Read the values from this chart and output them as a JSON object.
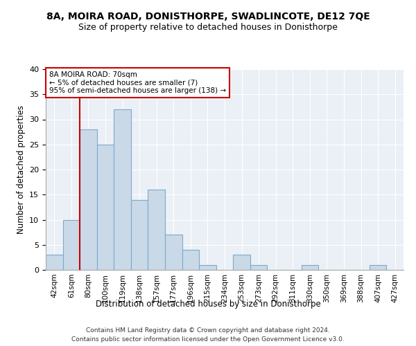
{
  "title": "8A, MOIRA ROAD, DONISTHORPE, SWADLINCOTE, DE12 7QE",
  "subtitle": "Size of property relative to detached houses in Donisthorpe",
  "xlabel": "Distribution of detached houses by size in Donisthorpe",
  "ylabel": "Number of detached properties",
  "bin_labels": [
    "42sqm",
    "61sqm",
    "80sqm",
    "100sqm",
    "119sqm",
    "138sqm",
    "157sqm",
    "177sqm",
    "196sqm",
    "215sqm",
    "234sqm",
    "253sqm",
    "273sqm",
    "292sqm",
    "311sqm",
    "330sqm",
    "350sqm",
    "369sqm",
    "388sqm",
    "407sqm",
    "427sqm"
  ],
  "bar_values": [
    3,
    10,
    28,
    25,
    32,
    14,
    16,
    7,
    4,
    1,
    0,
    3,
    1,
    0,
    0,
    1,
    0,
    0,
    0,
    1,
    0
  ],
  "bar_color": "#c9d9e8",
  "bar_edge_color": "#7ea8c9",
  "marker_label_line1": "8A MOIRA ROAD: 70sqm",
  "marker_label_line2": "← 5% of detached houses are smaller (7)",
  "marker_label_line3": "95% of semi-detached houses are larger (138) →",
  "annotation_box_color": "#ffffff",
  "annotation_box_edge": "#cc0000",
  "vline_color": "#cc0000",
  "vline_x": 1.5,
  "ylim": [
    0,
    40
  ],
  "yticks": [
    0,
    5,
    10,
    15,
    20,
    25,
    30,
    35,
    40
  ],
  "bg_color": "#eaf0f6",
  "footer_line1": "Contains HM Land Registry data © Crown copyright and database right 2024.",
  "footer_line2": "Contains public sector information licensed under the Open Government Licence v3.0.",
  "title_fontsize": 10,
  "subtitle_fontsize": 9
}
